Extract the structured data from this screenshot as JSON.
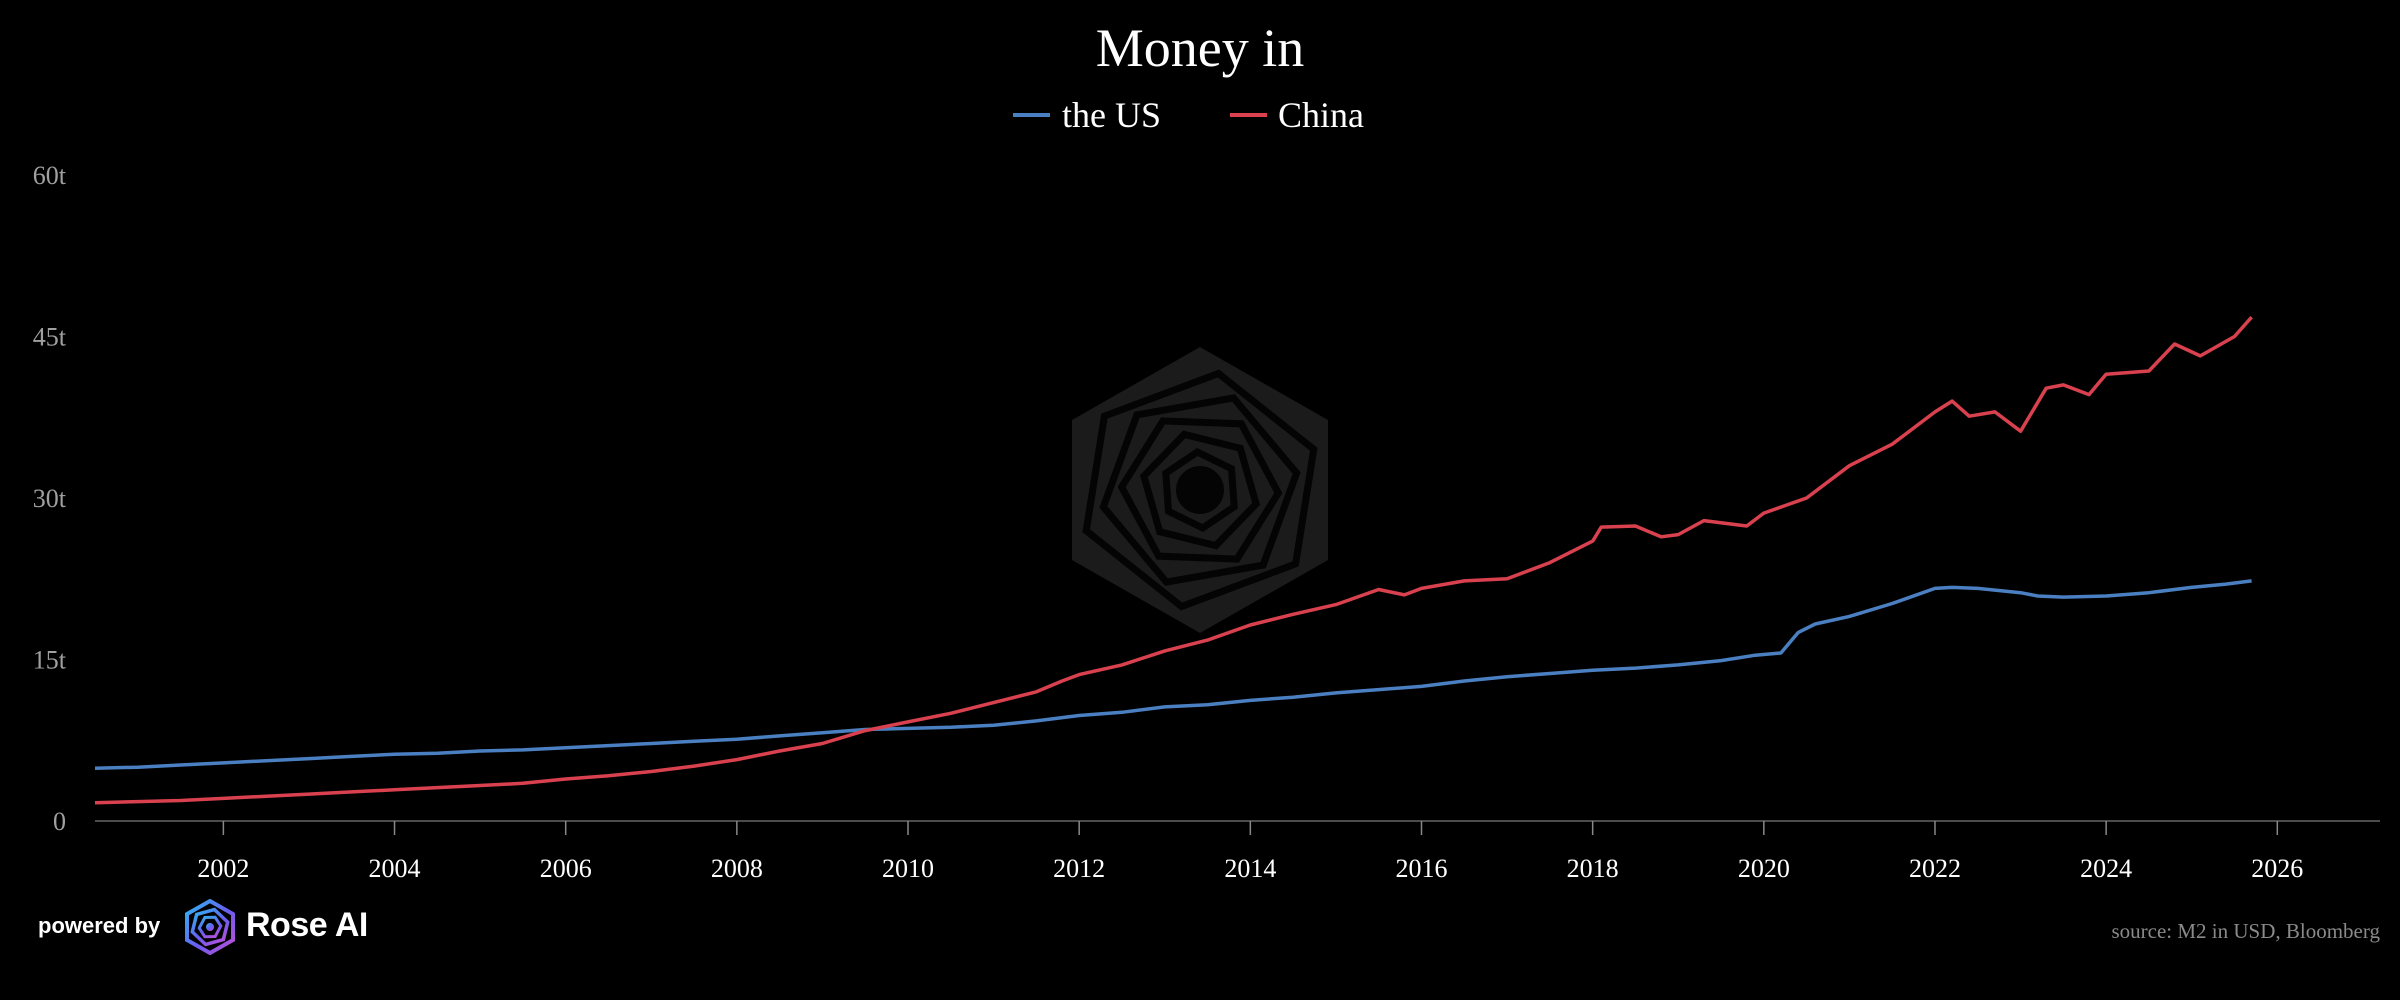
{
  "chart_data": {
    "type": "line",
    "title": "Money in",
    "source": "source: M2 in USD, Bloomberg",
    "xlim": [
      2000.5,
      2027.2
    ],
    "ylim": [
      0,
      60
    ],
    "y_ticks": [
      {
        "value": 0,
        "label": "0"
      },
      {
        "value": 15,
        "label": "15t"
      },
      {
        "value": 30,
        "label": "30t"
      },
      {
        "value": 45,
        "label": "45t"
      },
      {
        "value": 60,
        "label": "60t"
      }
    ],
    "x_ticks": [
      2002,
      2004,
      2006,
      2008,
      2010,
      2012,
      2014,
      2016,
      2018,
      2020,
      2022,
      2024,
      2026
    ],
    "grid": false,
    "legend_position": "top-center",
    "series": [
      {
        "name": "the US",
        "color": "#4a7fc1",
        "points": [
          [
            2000.5,
            4.9
          ],
          [
            2001.0,
            5.0
          ],
          [
            2001.5,
            5.2
          ],
          [
            2002.0,
            5.4
          ],
          [
            2002.5,
            5.6
          ],
          [
            2003.0,
            5.8
          ],
          [
            2003.5,
            6.0
          ],
          [
            2004.0,
            6.2
          ],
          [
            2004.5,
            6.3
          ],
          [
            2005.0,
            6.5
          ],
          [
            2005.5,
            6.6
          ],
          [
            2006.0,
            6.8
          ],
          [
            2006.5,
            7.0
          ],
          [
            2007.0,
            7.2
          ],
          [
            2007.5,
            7.4
          ],
          [
            2008.0,
            7.6
          ],
          [
            2008.5,
            7.9
          ],
          [
            2009.0,
            8.2
          ],
          [
            2009.5,
            8.5
          ],
          [
            2010.0,
            8.6
          ],
          [
            2010.5,
            8.7
          ],
          [
            2011.0,
            8.9
          ],
          [
            2011.5,
            9.3
          ],
          [
            2012.0,
            9.8
          ],
          [
            2012.5,
            10.1
          ],
          [
            2013.0,
            10.6
          ],
          [
            2013.5,
            10.8
          ],
          [
            2014.0,
            11.2
          ],
          [
            2014.5,
            11.5
          ],
          [
            2015.0,
            11.9
          ],
          [
            2015.5,
            12.2
          ],
          [
            2016.0,
            12.5
          ],
          [
            2016.5,
            13.0
          ],
          [
            2017.0,
            13.4
          ],
          [
            2017.5,
            13.7
          ],
          [
            2018.0,
            14.0
          ],
          [
            2018.5,
            14.2
          ],
          [
            2019.0,
            14.5
          ],
          [
            2019.5,
            14.9
          ],
          [
            2019.9,
            15.4
          ],
          [
            2020.2,
            15.6
          ],
          [
            2020.4,
            17.5
          ],
          [
            2020.6,
            18.3
          ],
          [
            2021.0,
            19.0
          ],
          [
            2021.5,
            20.2
          ],
          [
            2022.0,
            21.6
          ],
          [
            2022.2,
            21.7
          ],
          [
            2022.5,
            21.6
          ],
          [
            2023.0,
            21.2
          ],
          [
            2023.2,
            20.9
          ],
          [
            2023.5,
            20.8
          ],
          [
            2024.0,
            20.9
          ],
          [
            2024.5,
            21.2
          ],
          [
            2025.0,
            21.7
          ],
          [
            2025.4,
            22.0
          ],
          [
            2025.7,
            22.3
          ]
        ]
      },
      {
        "name": "China",
        "color": "#d9414f",
        "points": [
          [
            2000.5,
            1.7
          ],
          [
            2001.0,
            1.8
          ],
          [
            2001.5,
            1.9
          ],
          [
            2002.0,
            2.1
          ],
          [
            2002.5,
            2.3
          ],
          [
            2003.0,
            2.5
          ],
          [
            2003.5,
            2.7
          ],
          [
            2004.0,
            2.9
          ],
          [
            2004.5,
            3.1
          ],
          [
            2005.0,
            3.3
          ],
          [
            2005.5,
            3.5
          ],
          [
            2006.0,
            3.9
          ],
          [
            2006.5,
            4.2
          ],
          [
            2007.0,
            4.6
          ],
          [
            2007.5,
            5.1
          ],
          [
            2008.0,
            5.7
          ],
          [
            2008.5,
            6.5
          ],
          [
            2009.0,
            7.2
          ],
          [
            2009.5,
            8.4
          ],
          [
            2010.0,
            9.2
          ],
          [
            2010.5,
            10.0
          ],
          [
            2011.0,
            11.0
          ],
          [
            2011.5,
            12.0
          ],
          [
            2011.8,
            13.0
          ],
          [
            2012.0,
            13.6
          ],
          [
            2012.5,
            14.5
          ],
          [
            2013.0,
            15.8
          ],
          [
            2013.5,
            16.8
          ],
          [
            2014.0,
            18.2
          ],
          [
            2014.5,
            19.2
          ],
          [
            2015.0,
            20.1
          ],
          [
            2015.5,
            21.5
          ],
          [
            2015.8,
            21.0
          ],
          [
            2016.0,
            21.6
          ],
          [
            2016.5,
            22.3
          ],
          [
            2017.0,
            22.5
          ],
          [
            2017.5,
            24.0
          ],
          [
            2018.0,
            26.0
          ],
          [
            2018.1,
            27.3
          ],
          [
            2018.5,
            27.4
          ],
          [
            2018.8,
            26.4
          ],
          [
            2019.0,
            26.6
          ],
          [
            2019.3,
            27.9
          ],
          [
            2019.8,
            27.4
          ],
          [
            2020.0,
            28.6
          ],
          [
            2020.5,
            30.0
          ],
          [
            2021.0,
            33.0
          ],
          [
            2021.5,
            35.0
          ],
          [
            2022.0,
            38.0
          ],
          [
            2022.2,
            39.0
          ],
          [
            2022.4,
            37.6
          ],
          [
            2022.7,
            38.0
          ],
          [
            2023.0,
            36.2
          ],
          [
            2023.3,
            40.2
          ],
          [
            2023.5,
            40.5
          ],
          [
            2023.8,
            39.6
          ],
          [
            2024.0,
            41.5
          ],
          [
            2024.5,
            41.8
          ],
          [
            2024.8,
            44.3
          ],
          [
            2025.1,
            43.2
          ],
          [
            2025.5,
            45.0
          ],
          [
            2025.7,
            46.8
          ]
        ]
      }
    ]
  },
  "branding": {
    "powered_by": "powered by",
    "name": "Rose AI",
    "logo_icon": "rose-ai-logo-icon"
  },
  "watermark_icon": "rose-ai-watermark-icon"
}
